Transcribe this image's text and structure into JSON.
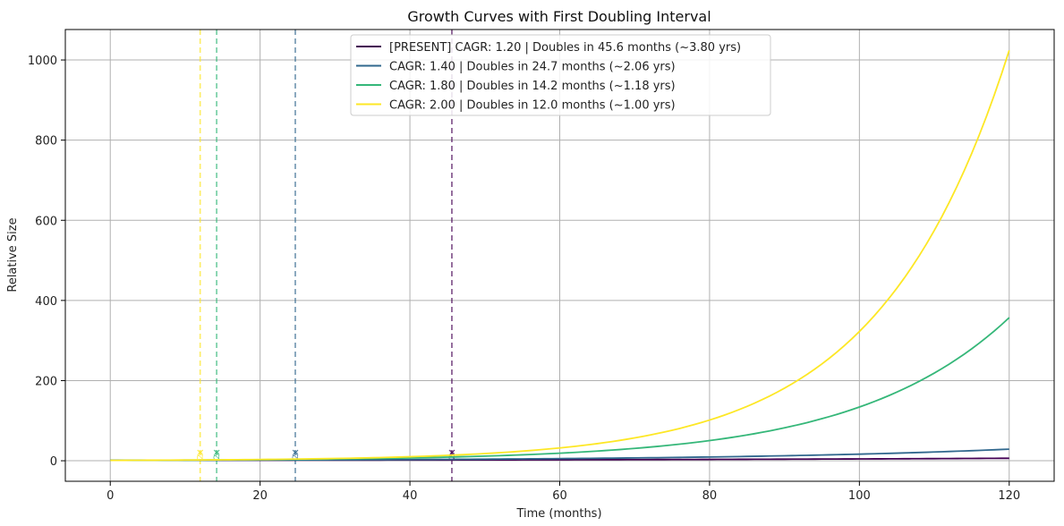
{
  "chart_data": {
    "type": "line",
    "title": "Growth Curves with First Doubling Interval",
    "xlabel": "Time (months)",
    "ylabel": "Relative Size",
    "xlim": [
      -6,
      126
    ],
    "ylim": [
      -51.2,
      1076
    ],
    "xticks": [
      0,
      20,
      40,
      60,
      80,
      100,
      120
    ],
    "yticks": [
      0,
      200,
      400,
      600,
      800,
      1000
    ],
    "grid": true,
    "legend_position": "top-center",
    "series": [
      {
        "name": "[PRESENT] CAGR: 1.20 | Doubles in 45.6 months (~3.80 yrs)",
        "cagr": 1.2,
        "doubling_months": 45.6,
        "color": "#440154",
        "x": [
          0,
          10,
          20,
          30,
          40,
          50,
          60,
          70,
          80,
          90,
          100,
          110,
          120
        ],
        "y": [
          1.0,
          1.16,
          1.36,
          1.58,
          1.84,
          2.14,
          2.49,
          2.9,
          3.38,
          3.93,
          4.58,
          5.33,
          6.19
        ]
      },
      {
        "name": "CAGR: 1.40 | Doubles in 24.7 months (~2.06 yrs)",
        "cagr": 1.4,
        "doubling_months": 24.7,
        "color": "#31688e",
        "x": [
          0,
          10,
          20,
          30,
          40,
          50,
          60,
          70,
          80,
          90,
          100,
          110,
          120
        ],
        "y": [
          1.0,
          1.32,
          1.75,
          2.32,
          3.07,
          4.07,
          5.38,
          7.12,
          9.43,
          12.48,
          16.52,
          21.87,
          28.93
        ]
      },
      {
        "name": "CAGR: 1.80 | Doubles in 14.2 months (~1.18 yrs)",
        "cagr": 1.8,
        "doubling_months": 14.2,
        "color": "#35b779",
        "x": [
          0,
          10,
          20,
          30,
          40,
          50,
          60,
          70,
          80,
          90,
          100,
          110,
          120
        ],
        "y": [
          1.0,
          1.63,
          2.66,
          4.34,
          7.09,
          11.57,
          18.9,
          30.86,
          50.39,
          82.27,
          134.3,
          219.3,
          357.0
        ]
      },
      {
        "name": "CAGR: 2.00 | Doubles in 12.0 months (~1.00 yrs)",
        "cagr": 2.0,
        "doubling_months": 12.0,
        "color": "#fde725",
        "x": [
          0,
          10,
          20,
          30,
          40,
          50,
          60,
          70,
          80,
          90,
          100,
          110,
          120
        ],
        "y": [
          1.0,
          1.78,
          3.17,
          5.66,
          10.08,
          17.96,
          32.0,
          57.02,
          101.6,
          181.0,
          322.5,
          574.7,
          1024.0
        ]
      }
    ],
    "doubling_markers": [
      {
        "x": 45.6,
        "color": "#440154",
        "label": "2x"
      },
      {
        "x": 24.7,
        "color": "#31688e",
        "label": "2x"
      },
      {
        "x": 14.2,
        "color": "#35b779",
        "label": "2x"
      },
      {
        "x": 12.0,
        "color": "#fde725",
        "label": "2x"
      }
    ]
  }
}
